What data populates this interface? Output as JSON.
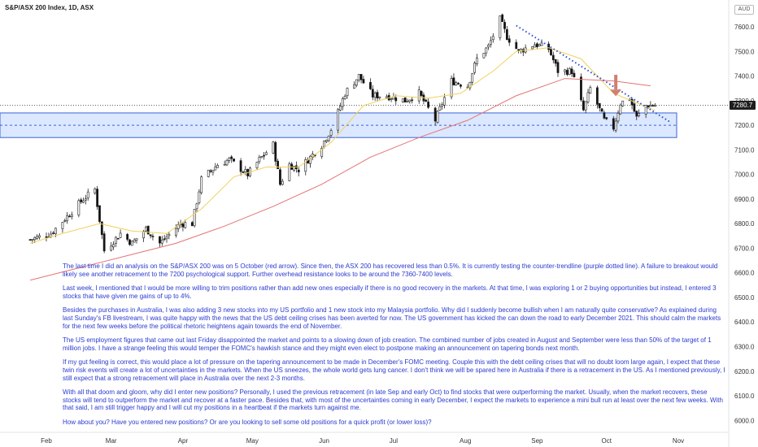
{
  "chart": {
    "title": "S&P/ASX 200 Index, 1D, ASX",
    "currency": "AUD",
    "last_price_label": "7280.7"
  },
  "chart_data": {
    "type": "candlestick",
    "title": "S&P/ASX 200 Index, 1D, ASX",
    "xlabel": "",
    "ylabel": "",
    "ylim": [
      5950,
      7690
    ],
    "y_ticks": [
      6000,
      6100,
      6200,
      6300,
      6400,
      6500,
      6600,
      6700,
      6800,
      6900,
      7000,
      7100,
      7200,
      7300,
      7400,
      7500,
      7600
    ],
    "x_ticks": [
      "Feb",
      "Mar",
      "Apr",
      "May",
      "Jun",
      "Jul",
      "Aug",
      "Sep",
      "Oct",
      "Nov"
    ],
    "grid": false,
    "colors": {
      "up": "#333333",
      "down": "#000000",
      "ma_fast": "#f2d15a",
      "ma_slow": "#e57373",
      "support_zone": "#cfe0ff",
      "trendline": "#2a4fd6",
      "arrow": "#d08070"
    },
    "support_zone": [
      7150,
      7250
    ],
    "trendline": [
      {
        "date": "Aug 23",
        "value": 7605
      },
      {
        "date": "Oct 29",
        "value": 7210
      }
    ],
    "last_price": 7280.7,
    "red_arrow_at": "Oct 5",
    "close_path": [
      [
        "Jan 25",
        6735
      ],
      [
        "Feb 3",
        6760
      ],
      [
        "Feb 10",
        6830
      ],
      [
        "Feb 17",
        6900
      ],
      [
        "Feb 22",
        6940
      ],
      [
        "Feb 26",
        6690
      ],
      [
        "Mar 5",
        6760
      ],
      [
        "Mar 10",
        6720
      ],
      [
        "Mar 16",
        6780
      ],
      [
        "Mar 22",
        6720
      ],
      [
        "Mar 31",
        6800
      ],
      [
        "Apr 5",
        6800
      ],
      [
        "Apr 9",
        6980
      ],
      [
        "Apr 16",
        7040
      ],
      [
        "Apr 21",
        7060
      ],
      [
        "Apr 29",
        7000
      ],
      [
        "May 4",
        7060
      ],
      [
        "May 10",
        7120
      ],
      [
        "May 13",
        6960
      ],
      [
        "May 17",
        7040
      ],
      [
        "May 21",
        7020
      ],
      [
        "May 31",
        7120
      ],
      [
        "Jun 5",
        7200
      ],
      [
        "Jun 10",
        7330
      ],
      [
        "Jun 16",
        7400
      ],
      [
        "Jun 22",
        7320
      ],
      [
        "Jun 28",
        7320
      ],
      [
        "Jul 6",
        7300
      ],
      [
        "Jul 12",
        7330
      ],
      [
        "Jul 19",
        7220
      ],
      [
        "Jul 26",
        7380
      ],
      [
        "Aug 2",
        7360
      ],
      [
        "Aug 6",
        7470
      ],
      [
        "Aug 11",
        7520
      ],
      [
        "Aug 16",
        7630
      ],
      [
        "Aug 19",
        7560
      ],
      [
        "Aug 24",
        7500
      ],
      [
        "Aug 31",
        7530
      ],
      [
        "Sep 6",
        7510
      ],
      [
        "Sep 10",
        7420
      ],
      [
        "Sep 16",
        7420
      ],
      [
        "Sep 21",
        7260
      ],
      [
        "Sep 24",
        7350
      ],
      [
        "Sep 30",
        7220
      ],
      [
        "Oct 4",
        7190
      ],
      [
        "Oct 7",
        7290
      ],
      [
        "Oct 11",
        7310
      ],
      [
        "Oct 14",
        7230
      ],
      [
        "Oct 18",
        7280
      ],
      [
        "Oct 22",
        7280.7
      ]
    ],
    "ma_fast_path": [
      [
        "Jan 25",
        6720
      ],
      [
        "Feb 8",
        6760
      ],
      [
        "Feb 24",
        6800
      ],
      [
        "Mar 10",
        6770
      ],
      [
        "Mar 25",
        6760
      ],
      [
        "Apr 9",
        6860
      ],
      [
        "Apr 23",
        6990
      ],
      [
        "May 7",
        7030
      ],
      [
        "May 21",
        7030
      ],
      [
        "Jun 4",
        7130
      ],
      [
        "Jun 18",
        7280
      ],
      [
        "Jul 2",
        7320
      ],
      [
        "Jul 16",
        7310
      ],
      [
        "Jul 30",
        7330
      ],
      [
        "Aug 13",
        7420
      ],
      [
        "Aug 23",
        7500
      ],
      [
        "Sep 6",
        7515
      ],
      [
        "Sep 20",
        7470
      ],
      [
        "Oct 4",
        7330
      ],
      [
        "Oct 22",
        7260
      ]
    ],
    "ma_slow_path": [
      [
        "Jan 25",
        6570
      ],
      [
        "Feb 15",
        6620
      ],
      [
        "Mar 8",
        6670
      ],
      [
        "Mar 29",
        6720
      ],
      [
        "Apr 19",
        6790
      ],
      [
        "May 10",
        6870
      ],
      [
        "May 31",
        6960
      ],
      [
        "Jun 21",
        7070
      ],
      [
        "Jul 12",
        7150
      ],
      [
        "Aug 2",
        7220
      ],
      [
        "Aug 23",
        7320
      ],
      [
        "Sep 13",
        7390
      ],
      [
        "Oct 4",
        7380
      ],
      [
        "Oct 20",
        7360
      ]
    ]
  },
  "commentary": [
    "The last time I did an analysis on the S&P/ASX 200 was on 5 October (red arrow). Since then, the ASX 200 has recovered less than 0.5%. It is currently testing the counter-trendline (purple dotted line). A failure to breakout would likely see another retracement to the 7200 psychological support. Further overhead resistance looks to be around the 7360-7400 levels.",
    "Last week, I mentioned that I would be more willing to trim positions rather than add new ones especially if there is no good recovery in the markets. At that time, I was exploring 1 or 2 buying opportunities but instead, I entered 3 stocks that have given me gains of up to 4%.",
    "Besides the purchases in Australia, I was also adding 3 new stocks into my US portfolio and 1 new stock into my Malaysia portfolio. Why did I suddenly become bullish when I am naturally quite conservative? As explained during last Sunday's FB livestream, I was quite happy with the news that the US debt ceiling crises has been averted for now. The US government has kicked the can down the road to early December 2021. This should calm the markets for the next few weeks before the political rhetoric heightens again towards the end of November.",
    "The US employment figures that came out last Friday disappointed the market and points to a slowing down of job creation. The combined number of jobs created in August and September were less than 50% of the target of 1 million jobs. I have a strange feeling this would temper the FOMC's hawkish stance and they might even elect to postpone making an announcement on tapering bonds next month.",
    "If my gut feeling is correct, this would place a lot of pressure on the tapering announcement to be made in December's FOMC meeting. Couple this with the debt ceiling crises that will no doubt loom large again, I expect that these twin risk events will create a lot of uncertainties in the markets. When the US sneezes, the whole world gets lung cancer. I don't think we will be spared here in Australia if there is a retracement in the US. As I mentioned previously, I still expect that a strong retracement will place in Australia over the next 2-3 months.",
    "With all that doom and gloom, why did I enter new positions? Personally, I used the previous retracement (in late Sep and early Oct) to find stocks that were outperforming the market. Usually, when the market recovers, these stocks will tend to outperform the market and recover at a faster pace. Besides that, with most of the uncertainties coming in early December, I expect the markets to experience a mini bull run at least over the next few weeks. With that said, I am still trigger happy and I will cut my positions in a heartbeat if the markets turn against me.",
    "How about you? Have you entered new positions? Or are you looking to sell some old positions for a quick profit (or lower loss)?"
  ]
}
